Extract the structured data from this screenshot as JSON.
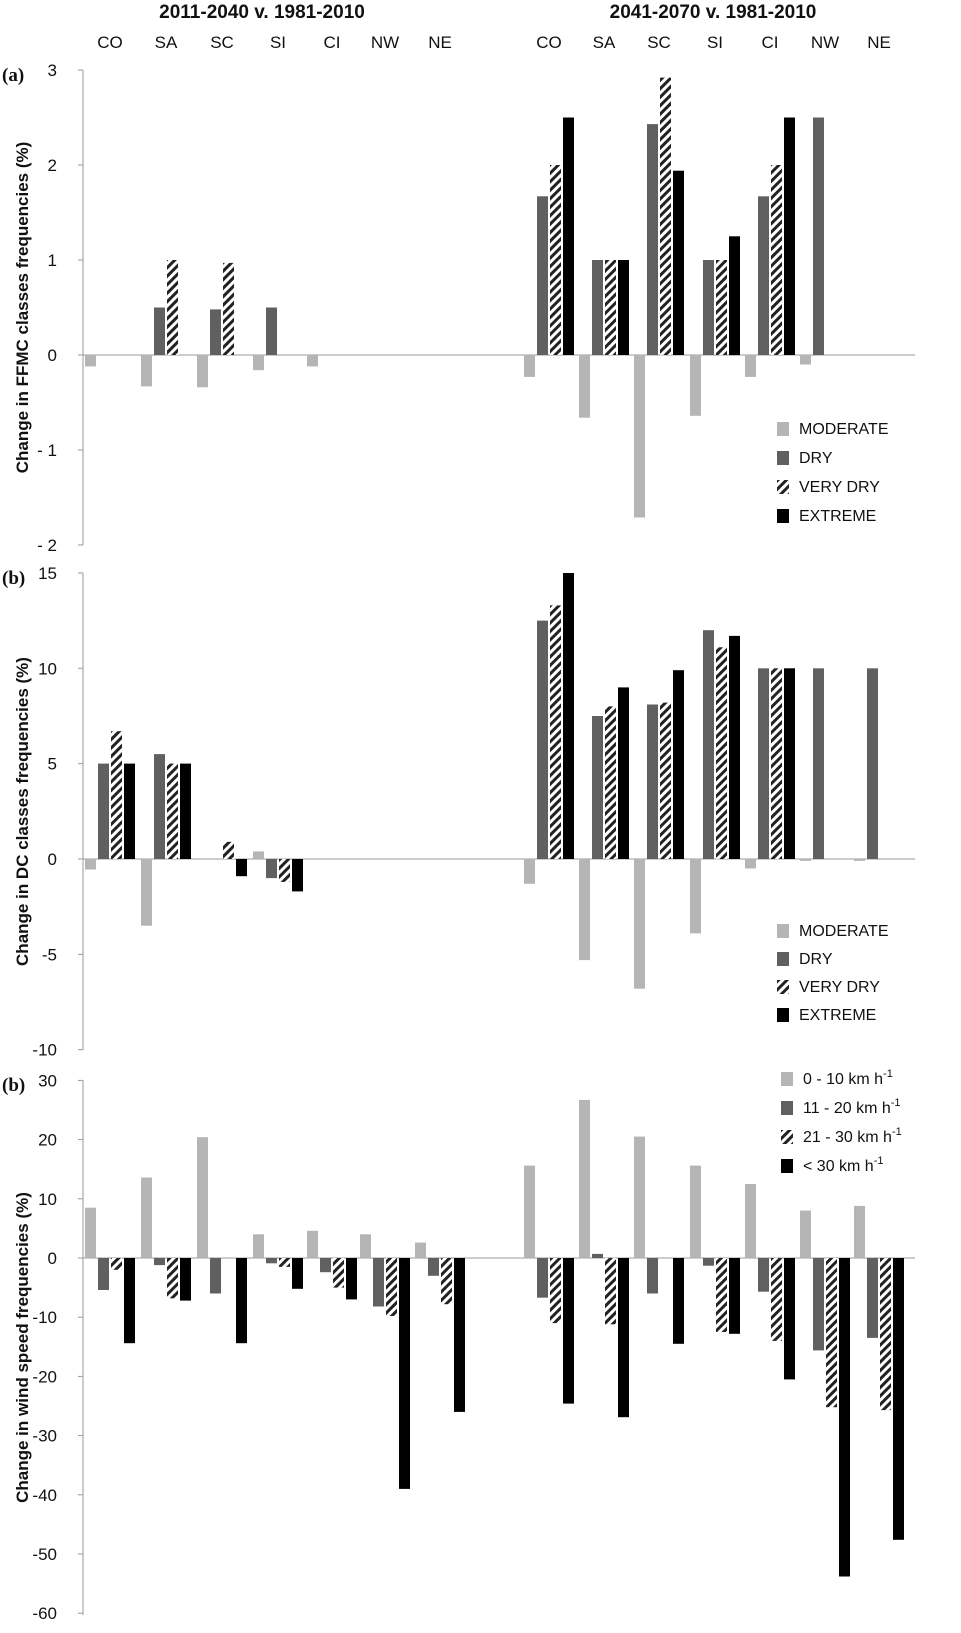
{
  "headers": [
    "2011-2040 v. 1981-2010",
    "2041-2070 v. 1981-2010"
  ],
  "regions": [
    "CO",
    "SA",
    "SC",
    "SI",
    "CI",
    "NW",
    "NE"
  ],
  "colors": {
    "moderate": "#b5b5b5",
    "dry": "#606060",
    "very_dry_hatch": "#222222",
    "extreme": "#000000",
    "axis": "#999999"
  },
  "chart_data": [
    {
      "type": "bar",
      "panel_label": "(a)",
      "ylabel": "Change in FFMC classes frequencies (%)",
      "ylim": [
        -2,
        3
      ],
      "yticks": [
        3,
        2,
        1,
        0,
        -1,
        -2
      ],
      "ytick_labels": [
        "3",
        "2",
        "1",
        "0",
        "- 1",
        "- 2"
      ],
      "groups": [
        "CO 2011-2040",
        "SA 2011-2040",
        "SC 2011-2040",
        "SI 2011-2040",
        "CI 2011-2040",
        "NW 2011-2040",
        "NE 2011-2040",
        "CO 2041-2070",
        "SA 2041-2070",
        "SC 2041-2070",
        "SI 2041-2070",
        "CI 2041-2070",
        "NW 2041-2070",
        "NE 2041-2070"
      ],
      "series": [
        {
          "name": "MODERATE",
          "style": "moderate",
          "values": [
            -0.12,
            -0.33,
            -0.34,
            -0.16,
            -0.12,
            0,
            0,
            -0.23,
            -0.66,
            -1.71,
            -0.64,
            -0.23,
            -0.1,
            0
          ]
        },
        {
          "name": "DRY",
          "style": "dry",
          "values": [
            0,
            0.5,
            0.48,
            0.5,
            0,
            0,
            0,
            1.67,
            1.0,
            2.43,
            1.0,
            1.67,
            2.5,
            0
          ]
        },
        {
          "name": "VERY DRY",
          "style": "hatch",
          "values": [
            0,
            1.0,
            0.97,
            0,
            0,
            0,
            0,
            2.0,
            1.0,
            2.92,
            1.0,
            2.0,
            0,
            0
          ]
        },
        {
          "name": "EXTREME",
          "style": "extreme",
          "values": [
            0,
            0,
            0,
            0,
            0,
            0,
            0,
            2.5,
            1.0,
            1.94,
            1.25,
            2.5,
            0,
            0
          ]
        }
      ]
    },
    {
      "type": "bar",
      "panel_label": "(b)",
      "ylabel": "Change in DC classes frequencies (%)",
      "ylim": [
        -10,
        15
      ],
      "yticks": [
        15,
        10,
        5,
        0,
        -5,
        -10
      ],
      "ytick_labels": [
        "15",
        "10",
        "5",
        "0",
        "-5",
        "-10"
      ],
      "groups": [
        "CO 2011-2040",
        "SA 2011-2040",
        "SC 2011-2040",
        "SI 2011-2040",
        "CI 2011-2040",
        "NW 2011-2040",
        "NE 2011-2040",
        "CO 2041-2070",
        "SA 2041-2070",
        "SC 2041-2070",
        "SI 2041-2070",
        "CI 2041-2070",
        "NW 2041-2070",
        "NE 2041-2070"
      ],
      "series": [
        {
          "name": "MODERATE",
          "style": "moderate",
          "values": [
            -0.55,
            -3.5,
            0,
            0.4,
            0,
            0,
            0,
            -1.3,
            -5.3,
            -6.8,
            -3.9,
            -0.5,
            -0.1,
            -0.1
          ]
        },
        {
          "name": "DRY",
          "style": "dry",
          "values": [
            5.0,
            5.5,
            0,
            -1.0,
            0,
            0,
            0,
            12.5,
            7.5,
            8.1,
            12.0,
            10.0,
            10.0,
            10.0
          ]
        },
        {
          "name": "VERY DRY",
          "style": "hatch",
          "values": [
            6.7,
            5.0,
            0.9,
            -1.2,
            0,
            0,
            0,
            13.3,
            8.0,
            8.2,
            11.1,
            10.0,
            0,
            0
          ]
        },
        {
          "name": "EXTREME",
          "style": "extreme",
          "values": [
            5.0,
            5.0,
            -0.9,
            -1.7,
            0,
            0,
            0,
            15.0,
            9.0,
            9.9,
            11.7,
            10.0,
            0,
            0
          ]
        }
      ]
    },
    {
      "type": "bar",
      "panel_label": "(b)",
      "ylabel": "Change in wind speed frequencies (%)",
      "ylim": [
        -60,
        30
      ],
      "yticks": [
        30,
        20,
        10,
        0,
        -10,
        -20,
        -30,
        -40,
        -50,
        -60
      ],
      "ytick_labels": [
        "30",
        "20",
        "10",
        "0",
        "-10",
        "-20",
        "-30",
        "-40",
        "-50",
        "-60"
      ],
      "groups": [
        "CO 2011-2040",
        "SA 2011-2040",
        "SC 2011-2040",
        "SI 2011-2040",
        "CI 2011-2040",
        "NW 2011-2040",
        "NE 2011-2040",
        "CO 2041-2070",
        "SA 2041-2070",
        "SC 2041-2070",
        "SI 2041-2070",
        "CI 2041-2070",
        "NW 2041-2070",
        "NE 2041-2070"
      ],
      "series": [
        {
          "name": "0 - 10 km h",
          "unit_sup": "-1",
          "style": "moderate",
          "values": [
            8.5,
            13.6,
            20.4,
            4.0,
            4.6,
            4.0,
            2.6,
            15.6,
            26.7,
            20.5,
            15.6,
            12.5,
            8.0,
            8.8
          ]
        },
        {
          "name": "11 - 20 km h",
          "unit_sup": "-1",
          "style": "dry",
          "values": [
            -5.4,
            -1.2,
            -6.0,
            -0.9,
            -2.4,
            -8.2,
            -3.0,
            -6.7,
            0.7,
            -6.0,
            -1.3,
            -5.7,
            -15.6,
            -13.5
          ]
        },
        {
          "name": "21 - 30 km h",
          "unit_sup": "-1",
          "style": "hatch",
          "values": [
            -2.0,
            -6.8,
            0,
            -1.5,
            -5.0,
            -9.8,
            -7.8,
            -11.0,
            -11.2,
            0,
            -12.5,
            -14.0,
            -25.2,
            -25.7
          ]
        },
        {
          "name": "< 30 km h",
          "unit_sup": "-1",
          "style": "extreme",
          "values": [
            -14.4,
            -7.2,
            -14.4,
            -5.2,
            -7.0,
            -39.0,
            -26.0,
            -24.6,
            -26.9,
            -14.5,
            -12.8,
            -20.5,
            -53.8,
            -47.6
          ]
        }
      ]
    }
  ]
}
